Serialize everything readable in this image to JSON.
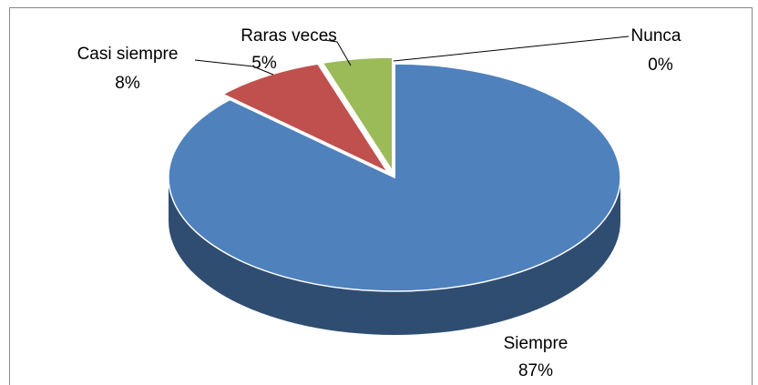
{
  "chart_data": {
    "type": "pie3d",
    "categories": [
      "Siempre",
      "Casi siempre",
      "Raras veces",
      "Nunca"
    ],
    "values": [
      87,
      8,
      5,
      0
    ],
    "value_labels": [
      "87%",
      "8%",
      "5%",
      "0%"
    ],
    "colors": [
      "#4f81bd",
      "#c0504d",
      "#9bbb59",
      "#8064a2"
    ]
  }
}
